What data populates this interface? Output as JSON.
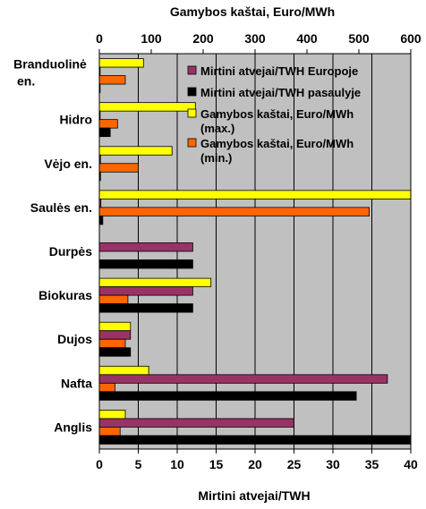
{
  "chart_data": {
    "type": "bar",
    "orientation": "horizontal",
    "top_axis_title": "Gamybos kaštai, Euro/MWh",
    "bottom_axis_title": "Mirtini atvejai/TWH",
    "top_axis": {
      "range": [
        0,
        600
      ],
      "ticks": [
        "0",
        "100",
        "200",
        "300",
        "400",
        "500",
        "600"
      ]
    },
    "bottom_axis": {
      "range": [
        0,
        40
      ],
      "ticks": [
        "0",
        "5",
        "10",
        "15",
        "20",
        "25",
        "30",
        "35",
        "40"
      ]
    },
    "grid": true,
    "plot_background": "#c0c0c0",
    "legend_position": "top-right",
    "categories": [
      "Branduolinė en.",
      "Hidro",
      "Vėjo en.",
      "Saulės en.",
      "Durpės",
      "Biokuras",
      "Dujos",
      "Nafta",
      "Anglis"
    ],
    "series": [
      {
        "name": "Mirtini atvejai/TWH Europoje",
        "axis": "bottom",
        "color": "#993366",
        "values": [
          0.1,
          0.1,
          0.15,
          0.2,
          12,
          12,
          4,
          37,
          25
        ]
      },
      {
        "name": "Mirtini atvejai/TWH pasaulyje",
        "axis": "bottom",
        "color": "#000000",
        "values": [
          0.1,
          1.4,
          0.15,
          0.44,
          12,
          12,
          4,
          33,
          40.5
        ]
      },
      {
        "name": "Gamybos kaštai, Euro/MWh (max.)",
        "axis": "top",
        "color": "#ffff00",
        "values": [
          85,
          185,
          140,
          610,
          null,
          215,
          60,
          95,
          50
        ]
      },
      {
        "name": "Gamybos kaštai, Euro/MWh (min.)",
        "axis": "top",
        "color": "#ff6600",
        "values": [
          50,
          35,
          75,
          520,
          null,
          55,
          50,
          30,
          40
        ]
      }
    ]
  }
}
